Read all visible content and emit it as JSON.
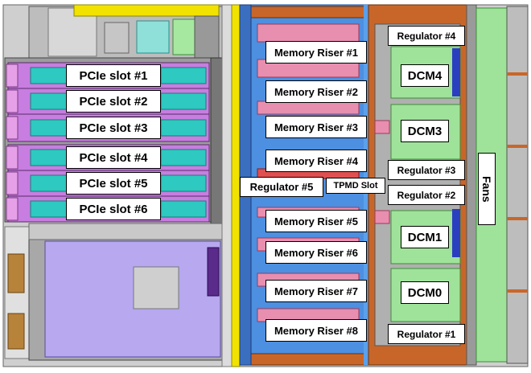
{
  "labels": {
    "pcie_slots": [
      "PCIe slot #1",
      "PCIe slot #2",
      "PCIe slot #3",
      "PCIe slot #4",
      "PCIe slot #5",
      "PCIe slot #6"
    ],
    "memory_risers": [
      "Memory Riser #1",
      "Memory Riser #2",
      "Memory Riser #3",
      "Memory Riser #4",
      "Memory Riser #5",
      "Memory Riser #6",
      "Memory Riser #7",
      "Memory Riser #8"
    ],
    "regulators": {
      "r1": "Regulator #1",
      "r2": "Regulator #2",
      "r3": "Regulator #3",
      "r4": "Regulator #4",
      "r5": "Regulator #5"
    },
    "dcms": {
      "d0": "DCM0",
      "d1": "DCM1",
      "d3": "DCM3",
      "d4": "DCM4"
    },
    "tpmd": "TPMD Slot",
    "fans": "Fans"
  },
  "colors": {
    "pcie_card": "#c77ee0",
    "pcie_connector": "#2ec9c1",
    "memory_riser": "#4d8fe0",
    "dimm_pink": "#e88fb0",
    "chassis_green": "#9fe39a",
    "chassis_orange": "#c8662a",
    "backplane_yellow": "#f2e200",
    "psu_lavender": "#b7a8f0",
    "chassis_gray": "#c9c9c9"
  }
}
